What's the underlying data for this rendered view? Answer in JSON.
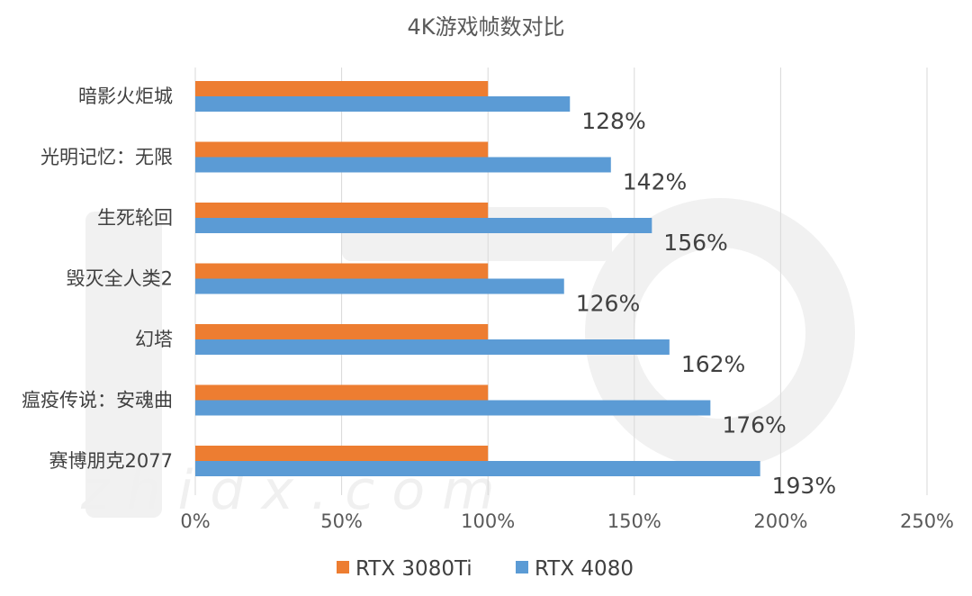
{
  "chart_data": {
    "type": "bar",
    "orientation": "horizontal",
    "title": "4K游戏帧数对比",
    "categories": [
      "暗影火炬城",
      "光明记忆：无限",
      "生死轮回",
      "毁灭全人类2",
      "幻塔",
      "瘟疫传说：安魂曲",
      "赛博朋克2077"
    ],
    "series": [
      {
        "name": "RTX 3080Ti",
        "color": "#ED7D31",
        "values": [
          100,
          100,
          100,
          100,
          100,
          100,
          100
        ]
      },
      {
        "name": "RTX 4080",
        "color": "#5B9BD5",
        "values": [
          128,
          142,
          156,
          126,
          162,
          176,
          193
        ]
      }
    ],
    "data_labels": [
      "128%",
      "142%",
      "156%",
      "126%",
      "162%",
      "176%",
      "193%"
    ],
    "x_ticks": [
      "0%",
      "50%",
      "100%",
      "150%",
      "200%",
      "250%"
    ],
    "xlim": [
      0,
      250
    ],
    "grid": true,
    "legend_position": "bottom"
  },
  "watermark": {
    "text": "z h i d x . c o m"
  }
}
